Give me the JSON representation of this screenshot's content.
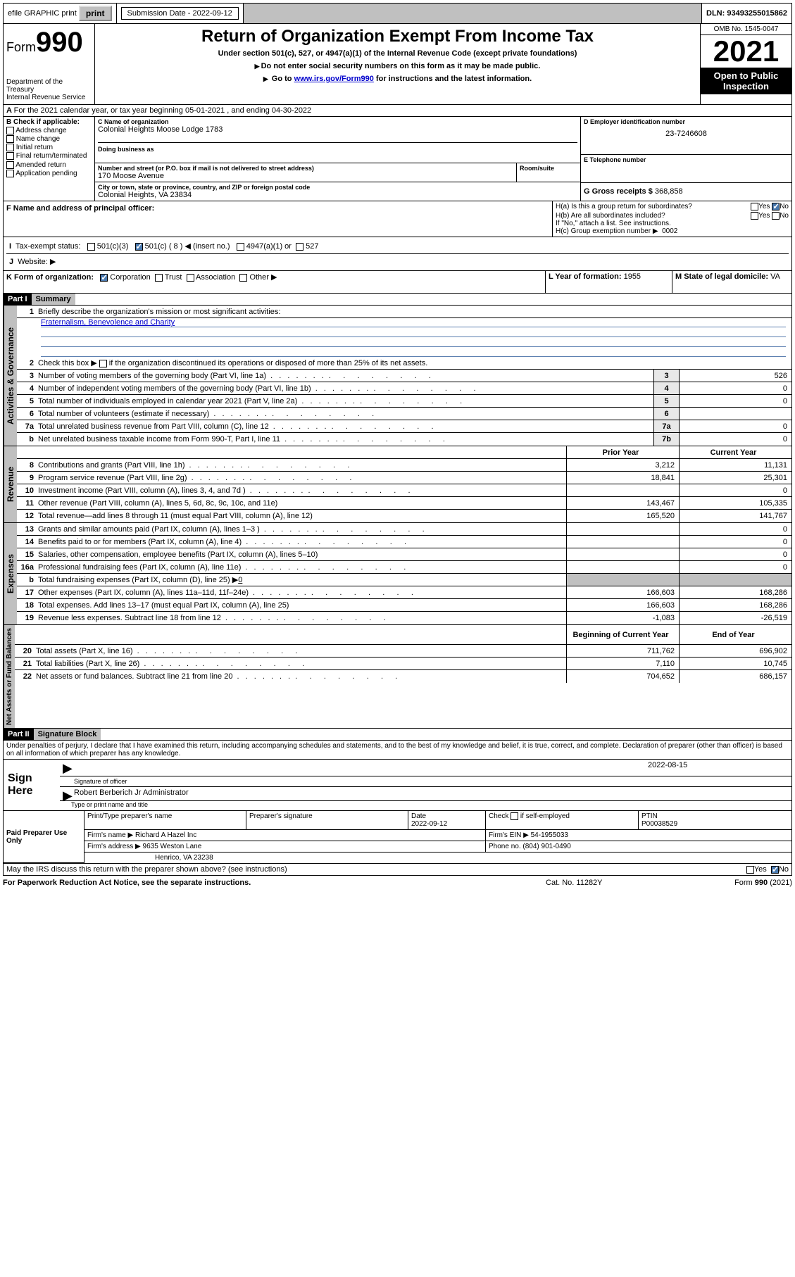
{
  "topbar": {
    "efile": "efile GRAPHIC print",
    "subdate_lbl": "Submission Date - 2022-09-12",
    "dln": "DLN: 93493255015862"
  },
  "header": {
    "form": "Form",
    "num": "990",
    "dept": "Department of the Treasury",
    "irs": "Internal Revenue Service",
    "title": "Return of Organization Exempt From Income Tax",
    "sub1": "Under section 501(c), 527, or 4947(a)(1) of the Internal Revenue Code (except private foundations)",
    "sub2": "Do not enter social security numbers on this form as it may be made public.",
    "sub3a": "Go to ",
    "sub3_link": "www.irs.gov/Form990",
    "sub3b": " for instructions and the latest information.",
    "omb": "OMB No. 1545-0047",
    "year": "2021",
    "open": "Open to Public Inspection"
  },
  "lineA": "For the 2021 calendar year, or tax year beginning 05-01-2021    , and ending 04-30-2022",
  "blockB": {
    "hdr": "B Check if applicable:",
    "addr": "Address change",
    "name": "Name change",
    "init": "Initial return",
    "final": "Final return/terminated",
    "amend": "Amended return",
    "app": "Application pending"
  },
  "blockC": {
    "name_lbl": "C Name of organization",
    "name": "Colonial Heights Moose Lodge 1783",
    "dba_lbl": "Doing business as",
    "street_lbl": "Number and street (or P.O. box if mail is not delivered to street address)",
    "street": "170 Moose Avenue",
    "room_lbl": "Room/suite",
    "city_lbl": "City or town, state or province, country, and ZIP or foreign postal code",
    "city": "Colonial Heights, VA  23834"
  },
  "blockD": {
    "lbl": "D Employer identification number",
    "val": "23-7246608"
  },
  "blockE": {
    "lbl": "E Telephone number"
  },
  "blockG": {
    "lbl": "G Gross receipts $",
    "val": "368,858"
  },
  "lineF": "F  Name and address of principal officer:",
  "lineH": {
    "a": "H(a)  Is this a group return for subordinates?",
    "b": "H(b)  Are all subordinates included?",
    "bnote": "If \"No,\" attach a list. See instructions.",
    "c": "H(c)  Group exemption number ▶",
    "cval": "0002",
    "yes": "Yes",
    "no": "No"
  },
  "lineI": {
    "lbl": "Tax-exempt status:",
    "o1": "501(c)(3)",
    "o2": "501(c) ( 8 ) ◀ (insert no.)",
    "o3": "4947(a)(1) or",
    "o4": "527"
  },
  "lineJ": "Website: ▶",
  "lineK": {
    "lbl": "K Form of organization:",
    "corp": "Corporation",
    "trust": "Trust",
    "assoc": "Association",
    "other": "Other ▶"
  },
  "lineL": {
    "lbl": "L Year of formation:",
    "val": "1955"
  },
  "lineM": {
    "lbl": "M State of legal domicile:",
    "val": "VA"
  },
  "part1": {
    "hdr": "Part I",
    "sub": "Summary"
  },
  "tabs": {
    "act": "Activities & Governance",
    "rev": "Revenue",
    "exp": "Expenses",
    "net": "Net Assets or Fund Balances"
  },
  "summary": {
    "l1": "Briefly describe the organization's mission or most significant activities:",
    "l1v": "Fraternalism, Benevolence and Charity",
    "l2": "Check this box ▶",
    "l2b": "if the organization discontinued its operations or disposed of more than 25% of its net assets.",
    "l3": "Number of voting members of the governing body (Part VI, line 1a)",
    "l4": "Number of independent voting members of the governing body (Part VI, line 1b)",
    "l5": "Total number of individuals employed in calendar year 2021 (Part V, line 2a)",
    "l6": "Total number of volunteers (estimate if necessary)",
    "l7a": "Total unrelated business revenue from Part VIII, column (C), line 12",
    "l7b": "Net unrelated business taxable income from Form 990-T, Part I, line 11",
    "v3": "526",
    "v4": "0",
    "v5": "0",
    "v6": "",
    "v7a": "0",
    "v7b": "0",
    "hdr_prior": "Prior Year",
    "hdr_curr": "Current Year",
    "l8": "Contributions and grants (Part VIII, line 1h)",
    "l9": "Program service revenue (Part VIII, line 2g)",
    "l10": "Investment income (Part VIII, column (A), lines 3, 4, and 7d )",
    "l11": "Other revenue (Part VIII, column (A), lines 5, 6d, 8c, 9c, 10c, and 11e)",
    "l12": "Total revenue—add lines 8 through 11 (must equal Part VIII, column (A), line 12)",
    "l13": "Grants and similar amounts paid (Part IX, column (A), lines 1–3 )",
    "l14": "Benefits paid to or for members (Part IX, column (A), line 4)",
    "l15": "Salaries, other compensation, employee benefits (Part IX, column (A), lines 5–10)",
    "l16a": "Professional fundraising fees (Part IX, column (A), line 11e)",
    "l16b": "Total fundraising expenses (Part IX, column (D), line 25) ▶",
    "l16bv": "0",
    "l17": "Other expenses (Part IX, column (A), lines 11a–11d, 11f–24e)",
    "l18": "Total expenses. Add lines 13–17 (must equal Part IX, column (A), line 25)",
    "l19": "Revenue less expenses. Subtract line 18 from line 12",
    "p8": "3,212",
    "c8": "11,131",
    "p9": "18,841",
    "c9": "25,301",
    "p10": "",
    "c10": "0",
    "p11": "143,467",
    "c11": "105,335",
    "p12": "165,520",
    "c12": "141,767",
    "p13": "",
    "c13": "0",
    "p14": "",
    "c14": "0",
    "p15": "",
    "c15": "0",
    "p16a": "",
    "c16a": "0",
    "p17": "166,603",
    "c17": "168,286",
    "p18": "166,603",
    "c18": "168,286",
    "p19": "-1,083",
    "c19": "-26,519",
    "hdr_beg": "Beginning of Current Year",
    "hdr_end": "End of Year",
    "l20": "Total assets (Part X, line 16)",
    "l21": "Total liabilities (Part X, line 26)",
    "l22": "Net assets or fund balances. Subtract line 21 from line 20",
    "p20": "711,762",
    "c20": "696,902",
    "p21": "7,110",
    "c21": "10,745",
    "p22": "704,652",
    "c22": "686,157"
  },
  "part2": {
    "hdr": "Part II",
    "sub": "Signature Block"
  },
  "sig": {
    "decl": "Under penalties of perjury, I declare that I have examined this return, including accompanying schedules and statements, and to the best of my knowledge and belief, it is true, correct, and complete. Declaration of preparer (other than officer) is based on all information of which preparer has any knowledge.",
    "here": "Sign Here",
    "sig_lbl": "Signature of officer",
    "date_lbl": "Date",
    "date": "2022-08-15",
    "name": "Robert Berberich Jr Administrator",
    "name_lbl": "Type or print name and title"
  },
  "prep": {
    "left": "Paid Preparer Use Only",
    "c1": "Print/Type preparer's name",
    "c2": "Preparer's signature",
    "c3": "Date",
    "c3v": "2022-09-12",
    "c4": "Check",
    "c4b": "if self-employed",
    "c5": "PTIN",
    "c5v": "P00038529",
    "firm_lbl": "Firm's name    ▶",
    "firm": "Richard A Hazel Inc",
    "ein_lbl": "Firm's EIN ▶",
    "ein": "54-1955033",
    "addr_lbl": "Firm's address ▶",
    "addr1": "9635 Weston Lane",
    "addr2": "Henrico, VA  23238",
    "phone_lbl": "Phone no.",
    "phone": "(804) 901-0490"
  },
  "bottom": {
    "q": "May the IRS discuss this return with the preparer shown above? (see instructions)",
    "yes": "Yes",
    "no": "No"
  },
  "footer": {
    "f1": "For Paperwork Reduction Act Notice, see the separate instructions.",
    "f2": "Cat. No. 11282Y",
    "f3": "Form 990 (2021)"
  }
}
